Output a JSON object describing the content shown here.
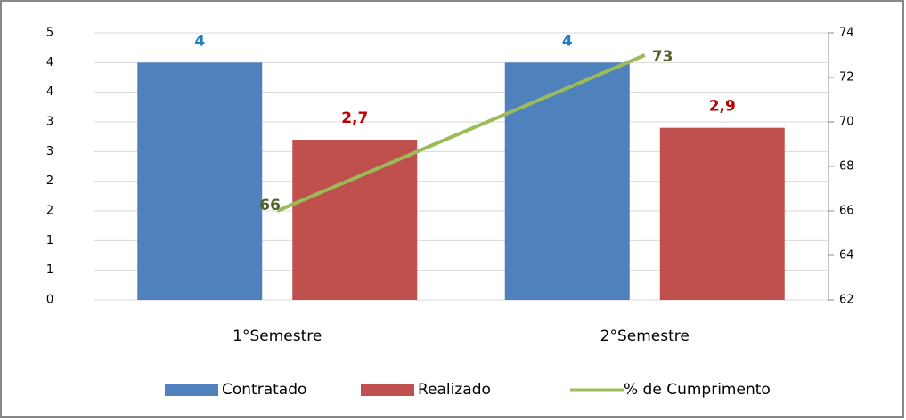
{
  "chart_data": {
    "type": "bar",
    "categories": [
      "1°Semestre",
      "2°Semestre"
    ],
    "series": [
      {
        "name": "Contratado",
        "color": "#4f81bd",
        "values": [
          4,
          4
        ]
      },
      {
        "name": "Realizado",
        "color": "#c0504d",
        "values": [
          2.7,
          2.9
        ],
        "value_labels": [
          "2,7",
          "2,9"
        ]
      },
      {
        "name": "% de Cumprimento",
        "type": "line",
        "axis": "y2",
        "color": "#9bbb59",
        "values": [
          66,
          73
        ]
      }
    ],
    "ylim": [
      0,
      4.5
    ],
    "yticks": [
      0,
      {
        "value": 0.5,
        "label": "1"
      },
      1,
      {
        "value": 1.5,
        "label": "2"
      },
      2,
      {
        "value": 2.5,
        "label": "3"
      },
      3,
      {
        "value": 3.5,
        "label": "4"
      },
      4,
      {
        "value": 4.5,
        "label": "5"
      }
    ],
    "y2lim": [
      62,
      74
    ],
    "y2ticks": [
      62,
      64,
      66,
      68,
      70,
      72,
      74
    ],
    "grid": true,
    "legend": "bottom"
  }
}
